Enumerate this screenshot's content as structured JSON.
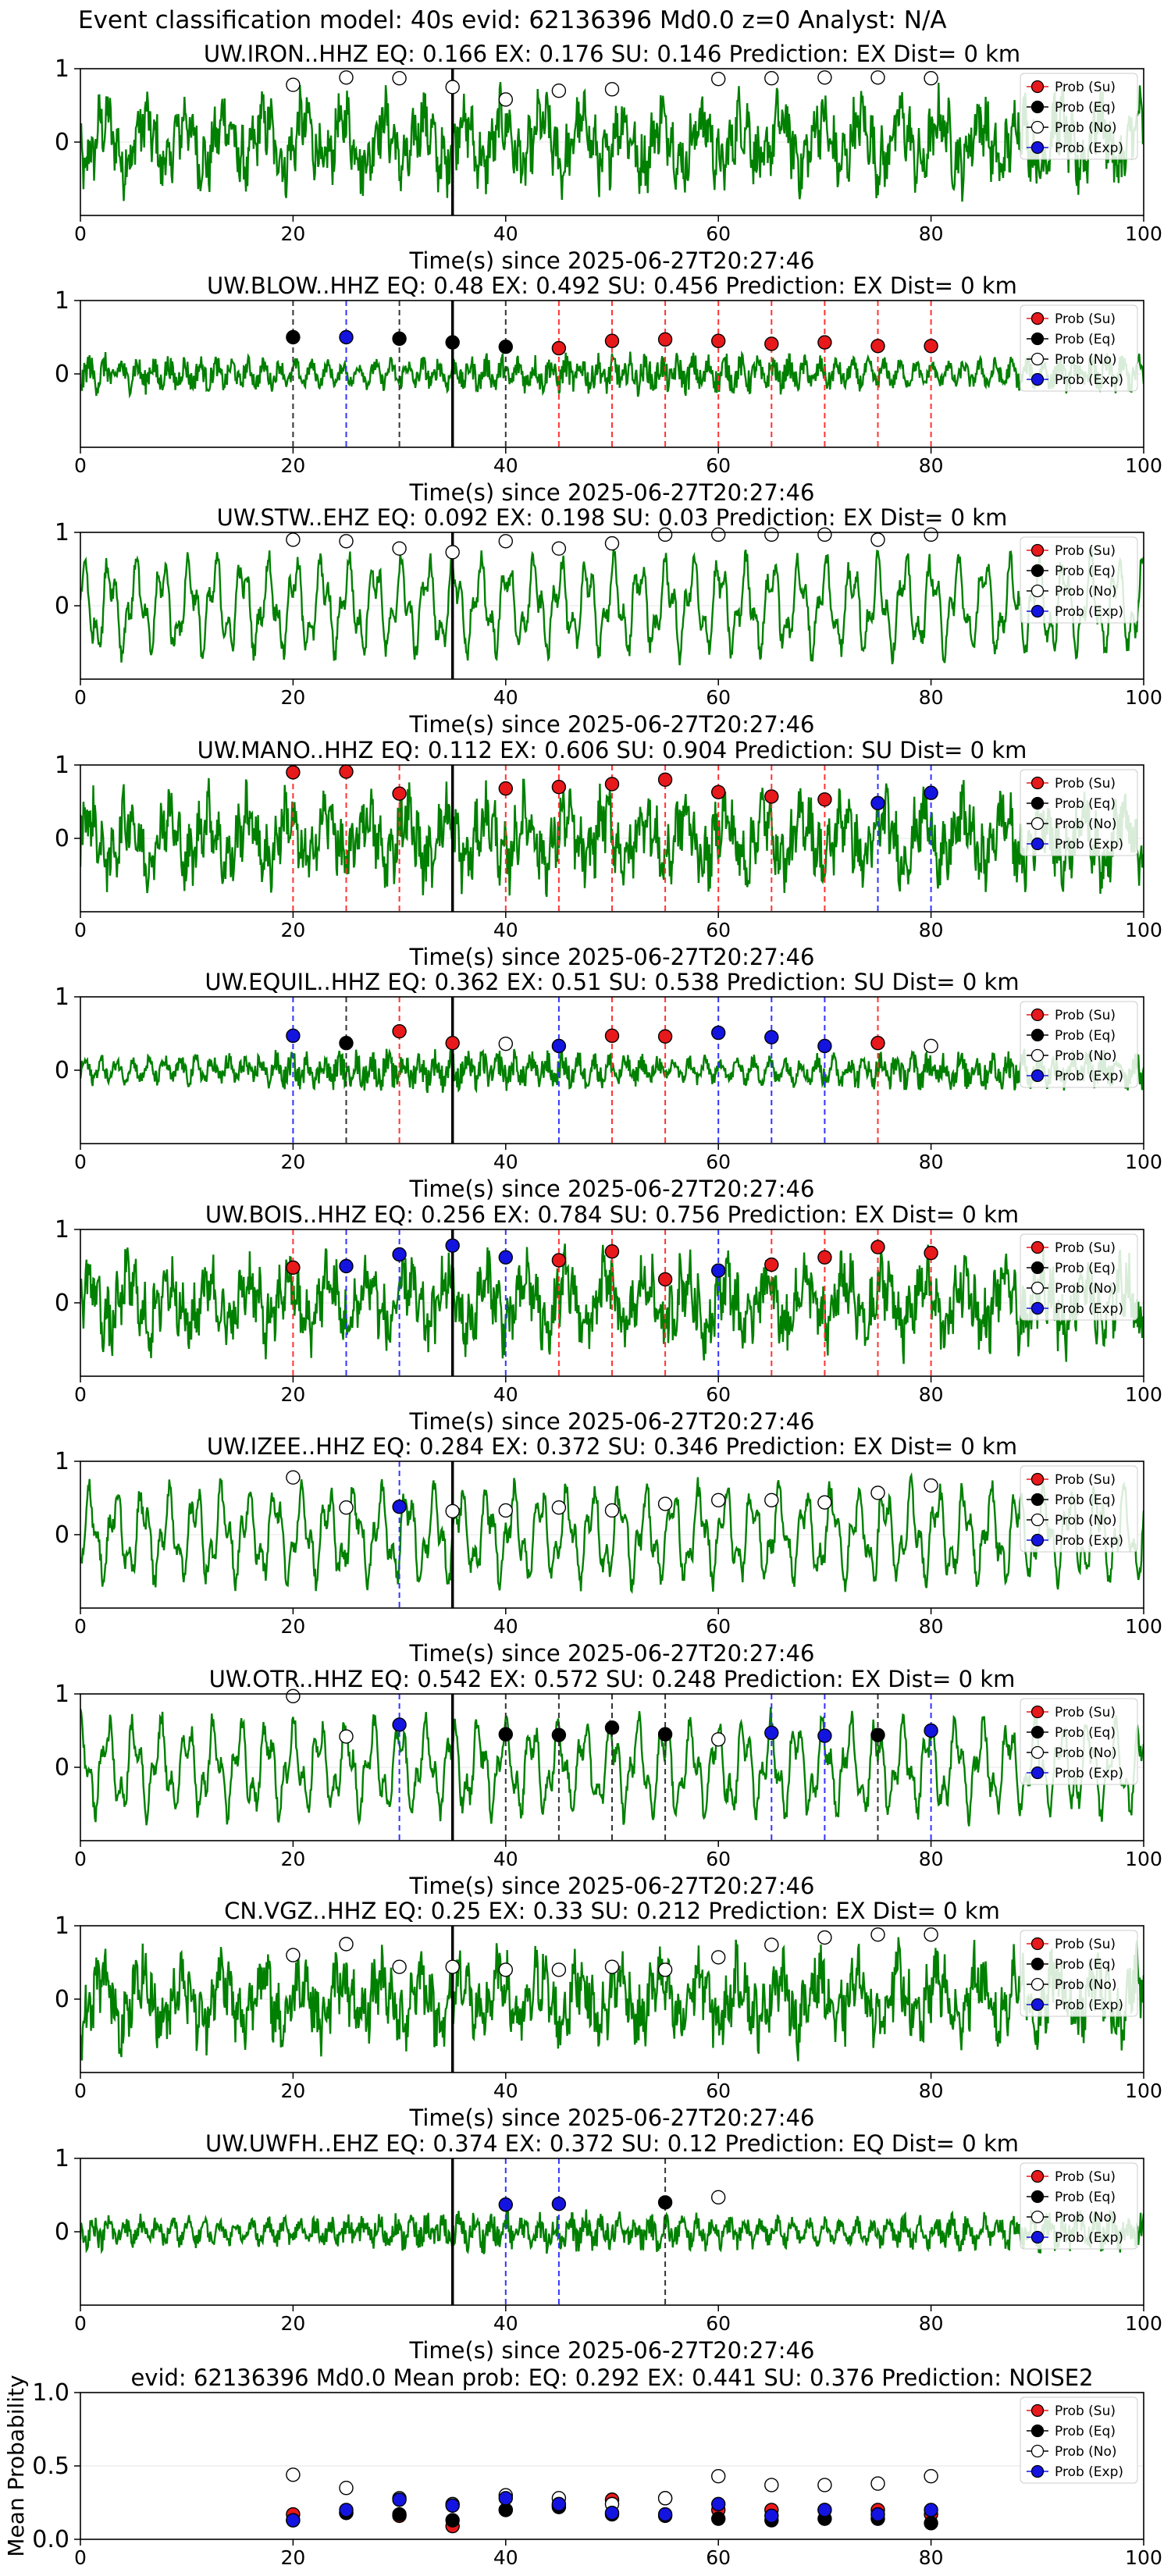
{
  "figure_title": "Event classification model: 40s evid: 62136396 Md0.0 z=0 Analyst: N/A",
  "legend_labels": [
    "Prob (Su)",
    "Prob (Eq)",
    "Prob (No)",
    "Prob (Exp)"
  ],
  "colors": {
    "su": "#e8191b",
    "eq": "#000000",
    "no": "#ffffff",
    "exp": "#1414e0",
    "waveform": "#008000",
    "su_line": "#ff3333",
    "exp_line": "#3333ff",
    "eq_line": "#333333"
  },
  "chart_data": [
    {
      "type": "line",
      "title": "UW.IRON..HHZ   EQ: 0.166  EX: 0.176  SU: 0.146   Prediction: EX    Dist= 0 km",
      "xlabel": "Time(s) since 2025-06-27T20:27:46",
      "ylabel": "",
      "xlim": [
        0,
        100
      ],
      "ylim": [
        -1,
        1
      ],
      "xticks": [
        0,
        20,
        40,
        60,
        80,
        100
      ],
      "yticks": [
        0,
        1
      ],
      "vline": 35,
      "wave_style": "mixed",
      "points": [
        [
          20,
          "no",
          0.78
        ],
        [
          25,
          "no",
          0.88
        ],
        [
          30,
          "no",
          0.87
        ],
        [
          35,
          "no",
          0.75
        ],
        [
          40,
          "no",
          0.58
        ],
        [
          45,
          "no",
          0.7
        ],
        [
          50,
          "no",
          0.72
        ],
        [
          60,
          "no",
          0.86
        ],
        [
          65,
          "no",
          0.87
        ],
        [
          70,
          "no",
          0.88
        ],
        [
          75,
          "no",
          0.88
        ],
        [
          80,
          "no",
          0.87
        ]
      ]
    },
    {
      "type": "line",
      "title": "UW.BLOW..HHZ   EQ: 0.48  EX: 0.492  SU: 0.456   Prediction: EX    Dist= 0 km",
      "xlabel": "Time(s) since 2025-06-27T20:27:46",
      "ylabel": "",
      "xlim": [
        0,
        100
      ],
      "ylim": [
        -1,
        1
      ],
      "xticks": [
        0,
        20,
        40,
        60,
        80,
        100
      ],
      "yticks": [
        0,
        1
      ],
      "vline": 35,
      "wave_style": "quiet",
      "points": [
        [
          20,
          "eq",
          0.5
        ],
        [
          25,
          "exp",
          0.5
        ],
        [
          30,
          "eq",
          0.48
        ],
        [
          35,
          "eq",
          0.43
        ],
        [
          40,
          "eq",
          0.37
        ],
        [
          45,
          "su",
          0.35
        ],
        [
          50,
          "su",
          0.45
        ],
        [
          55,
          "su",
          0.47
        ],
        [
          60,
          "su",
          0.45
        ],
        [
          65,
          "su",
          0.41
        ],
        [
          70,
          "su",
          0.43
        ],
        [
          75,
          "su",
          0.38
        ],
        [
          80,
          "su",
          0.38
        ]
      ]
    },
    {
      "type": "line",
      "title": "UW.STW..EHZ   EQ: 0.092  EX: 0.198  SU: 0.03   Prediction: EX    Dist= 0 km",
      "xlabel": "Time(s) since 2025-06-27T20:27:46",
      "ylabel": "",
      "xlim": [
        0,
        100
      ],
      "ylim": [
        -1,
        1
      ],
      "xticks": [
        0,
        20,
        40,
        60,
        80,
        100
      ],
      "yticks": [
        0,
        1
      ],
      "vline": 35,
      "wave_style": "smooth",
      "points": [
        [
          20,
          "no",
          0.9
        ],
        [
          25,
          "no",
          0.88
        ],
        [
          30,
          "no",
          0.78
        ],
        [
          35,
          "no",
          0.73
        ],
        [
          40,
          "no",
          0.88
        ],
        [
          45,
          "no",
          0.78
        ],
        [
          50,
          "no",
          0.85
        ],
        [
          55,
          "no",
          0.97
        ],
        [
          60,
          "no",
          0.97
        ],
        [
          65,
          "no",
          0.97
        ],
        [
          70,
          "no",
          0.97
        ],
        [
          75,
          "no",
          0.9
        ],
        [
          80,
          "no",
          0.97
        ]
      ]
    },
    {
      "type": "line",
      "title": "UW.MANO..HHZ   EQ: 0.112  EX: 0.606  SU: 0.904   Prediction: SU    Dist= 0 km",
      "xlabel": "Time(s) since 2025-06-27T20:27:46",
      "ylabel": "",
      "xlim": [
        0,
        100
      ],
      "ylim": [
        -1,
        1
      ],
      "xticks": [
        0,
        20,
        40,
        60,
        80,
        100
      ],
      "yticks": [
        0,
        1
      ],
      "vline": 35,
      "wave_style": "mixed",
      "points": [
        [
          20,
          "su",
          0.9
        ],
        [
          25,
          "su",
          0.91
        ],
        [
          30,
          "su",
          0.61
        ],
        [
          40,
          "su",
          0.68
        ],
        [
          45,
          "su",
          0.7
        ],
        [
          50,
          "su",
          0.74
        ],
        [
          55,
          "su",
          0.8
        ],
        [
          60,
          "su",
          0.63
        ],
        [
          65,
          "su",
          0.57
        ],
        [
          70,
          "su",
          0.53
        ],
        [
          75,
          "exp",
          0.48
        ],
        [
          80,
          "exp",
          0.62
        ]
      ]
    },
    {
      "type": "line",
      "title": "UW.EQUIL..HHZ   EQ: 0.362  EX: 0.51  SU: 0.538   Prediction: SU    Dist= 0 km",
      "xlabel": "Time(s) since 2025-06-27T20:27:46",
      "ylabel": "",
      "xlim": [
        0,
        100
      ],
      "ylim": [
        -1,
        1
      ],
      "xticks": [
        0,
        20,
        40,
        60,
        80,
        100
      ],
      "yticks": [
        0,
        1
      ],
      "vline": 35,
      "wave_style": "quiet",
      "points": [
        [
          20,
          "exp",
          0.47
        ],
        [
          25,
          "eq",
          0.37
        ],
        [
          30,
          "su",
          0.53
        ],
        [
          35,
          "su",
          0.37
        ],
        [
          40,
          "no",
          0.36
        ],
        [
          45,
          "exp",
          0.33
        ],
        [
          50,
          "su",
          0.47
        ],
        [
          55,
          "su",
          0.46
        ],
        [
          60,
          "exp",
          0.51
        ],
        [
          65,
          "exp",
          0.45
        ],
        [
          70,
          "exp",
          0.33
        ],
        [
          75,
          "su",
          0.37
        ],
        [
          80,
          "no",
          0.33
        ]
      ]
    },
    {
      "type": "line",
      "title": "UW.BOIS..HHZ   EQ: 0.256  EX: 0.784  SU: 0.756   Prediction: EX    Dist= 0 km",
      "xlabel": "Time(s) since 2025-06-27T20:27:46",
      "ylabel": "",
      "xlim": [
        0,
        100
      ],
      "ylim": [
        -1,
        1
      ],
      "xticks": [
        0,
        20,
        40,
        60,
        80,
        100
      ],
      "yticks": [
        0,
        1
      ],
      "vline": 35,
      "wave_style": "mixed",
      "points": [
        [
          20,
          "su",
          0.48
        ],
        [
          25,
          "exp",
          0.5
        ],
        [
          30,
          "exp",
          0.66
        ],
        [
          35,
          "exp",
          0.78
        ],
        [
          40,
          "exp",
          0.62
        ],
        [
          45,
          "su",
          0.58
        ],
        [
          50,
          "su",
          0.7
        ],
        [
          55,
          "su",
          0.32
        ],
        [
          60,
          "exp",
          0.44
        ],
        [
          65,
          "su",
          0.52
        ],
        [
          70,
          "su",
          0.62
        ],
        [
          75,
          "su",
          0.76
        ],
        [
          80,
          "su",
          0.68
        ]
      ]
    },
    {
      "type": "line",
      "title": "UW.IZEE..HHZ   EQ: 0.284  EX: 0.372  SU: 0.346   Prediction: EX    Dist= 0 km",
      "xlabel": "Time(s) since 2025-06-27T20:27:46",
      "ylabel": "",
      "xlim": [
        0,
        100
      ],
      "ylim": [
        -1,
        1
      ],
      "xticks": [
        0,
        20,
        40,
        60,
        80,
        100
      ],
      "yticks": [
        0,
        1
      ],
      "vline": 35,
      "wave_style": "smooth",
      "points": [
        [
          20,
          "no",
          0.78
        ],
        [
          25,
          "no",
          0.37
        ],
        [
          30,
          "exp",
          0.38
        ],
        [
          35,
          "no",
          0.32
        ],
        [
          40,
          "no",
          0.33
        ],
        [
          45,
          "no",
          0.37
        ],
        [
          50,
          "no",
          0.33
        ],
        [
          55,
          "no",
          0.42
        ],
        [
          60,
          "no",
          0.47
        ],
        [
          65,
          "no",
          0.47
        ],
        [
          70,
          "no",
          0.44
        ],
        [
          75,
          "no",
          0.57
        ],
        [
          80,
          "no",
          0.67
        ]
      ]
    },
    {
      "type": "line",
      "title": "UW.OTR..HHZ   EQ: 0.542  EX: 0.572  SU: 0.248   Prediction: EX    Dist= 0 km",
      "xlabel": "Time(s) since 2025-06-27T20:27:46",
      "ylabel": "",
      "xlim": [
        0,
        100
      ],
      "ylim": [
        -1,
        1
      ],
      "xticks": [
        0,
        20,
        40,
        60,
        80,
        100
      ],
      "yticks": [
        0,
        1
      ],
      "vline": 35,
      "wave_style": "smooth",
      "points": [
        [
          20,
          "no",
          0.97
        ],
        [
          25,
          "no",
          0.42
        ],
        [
          30,
          "exp",
          0.58
        ],
        [
          40,
          "eq",
          0.45
        ],
        [
          45,
          "eq",
          0.44
        ],
        [
          50,
          "eq",
          0.54
        ],
        [
          55,
          "eq",
          0.45
        ],
        [
          60,
          "no",
          0.38
        ],
        [
          65,
          "exp",
          0.47
        ],
        [
          70,
          "exp",
          0.43
        ],
        [
          75,
          "eq",
          0.44
        ],
        [
          80,
          "exp",
          0.5
        ]
      ]
    },
    {
      "type": "line",
      "title": "CN.VGZ..HHZ   EQ: 0.25  EX: 0.33  SU: 0.212   Prediction: EX    Dist= 0 km",
      "xlabel": "Time(s) since 2025-06-27T20:27:46",
      "ylabel": "",
      "xlim": [
        0,
        100
      ],
      "ylim": [
        -1,
        1
      ],
      "xticks": [
        0,
        20,
        40,
        60,
        80,
        100
      ],
      "yticks": [
        0,
        1
      ],
      "vline": 35,
      "wave_style": "mixed",
      "points": [
        [
          20,
          "no",
          0.6
        ],
        [
          25,
          "no",
          0.75
        ],
        [
          30,
          "no",
          0.44
        ],
        [
          35,
          "no",
          0.44
        ],
        [
          40,
          "no",
          0.4
        ],
        [
          45,
          "no",
          0.4
        ],
        [
          50,
          "no",
          0.44
        ],
        [
          55,
          "no",
          0.4
        ],
        [
          60,
          "no",
          0.57
        ],
        [
          65,
          "no",
          0.74
        ],
        [
          70,
          "no",
          0.84
        ],
        [
          75,
          "no",
          0.88
        ],
        [
          80,
          "no",
          0.88
        ]
      ]
    },
    {
      "type": "line",
      "title": "UW.UWFH..EHZ   EQ: 0.374  EX: 0.372  SU: 0.12   Prediction: EQ    Dist= 0 km",
      "xlabel": "Time(s) since 2025-06-27T20:27:46",
      "ylabel": "",
      "xlim": [
        0,
        100
      ],
      "ylim": [
        -1,
        1
      ],
      "xticks": [
        0,
        20,
        40,
        60,
        80,
        100
      ],
      "yticks": [
        0,
        1
      ],
      "vline": 35,
      "wave_style": "quiet",
      "points": [
        [
          40,
          "exp",
          0.37
        ],
        [
          45,
          "exp",
          0.38
        ],
        [
          55,
          "eq",
          0.4
        ],
        [
          60,
          "no",
          0.47
        ]
      ]
    },
    {
      "type": "scatter",
      "title": "evid: 62136396  Md0.0   Mean prob:   EQ: 0.292  EX: 0.441  SU: 0.376   Prediction: NOISE2",
      "xlabel": "",
      "ylabel": "Mean Probability",
      "xlim": [
        0,
        100
      ],
      "ylim": [
        0,
        1
      ],
      "xticks": [
        0,
        20,
        40,
        60,
        80,
        100
      ],
      "yticks": [
        0.0,
        0.5,
        1.0
      ],
      "series": [
        {
          "name": "Prob (Su)",
          "key": "su",
          "x": [
            20,
            25,
            30,
            35,
            40,
            45,
            50,
            55,
            60,
            65,
            70,
            75,
            80
          ],
          "y": [
            0.17,
            0.18,
            0.16,
            0.09,
            0.2,
            0.23,
            0.27,
            0.28,
            0.2,
            0.2,
            0.2,
            0.2,
            0.17
          ]
        },
        {
          "name": "Prob (Eq)",
          "key": "eq",
          "x": [
            20,
            25,
            30,
            35,
            40,
            45,
            50,
            55,
            60,
            65,
            70,
            75,
            80
          ],
          "y": [
            0.13,
            0.18,
            0.17,
            0.13,
            0.2,
            0.22,
            0.17,
            0.16,
            0.14,
            0.13,
            0.14,
            0.14,
            0.11
          ]
        },
        {
          "name": "Prob (No)",
          "key": "no",
          "x": [
            20,
            25,
            30,
            35,
            40,
            45,
            50,
            55,
            60,
            65,
            70,
            75,
            80
          ],
          "y": [
            0.44,
            0.35,
            0.28,
            0.24,
            0.3,
            0.28,
            0.24,
            0.28,
            0.43,
            0.37,
            0.37,
            0.38,
            0.43
          ]
        },
        {
          "name": "Prob (Exp)",
          "key": "exp",
          "x": [
            20,
            25,
            30,
            35,
            40,
            45,
            50,
            55,
            60,
            65,
            70,
            75,
            80
          ],
          "y": [
            0.13,
            0.2,
            0.27,
            0.23,
            0.28,
            0.24,
            0.18,
            0.17,
            0.24,
            0.16,
            0.2,
            0.17,
            0.2
          ]
        }
      ]
    }
  ]
}
